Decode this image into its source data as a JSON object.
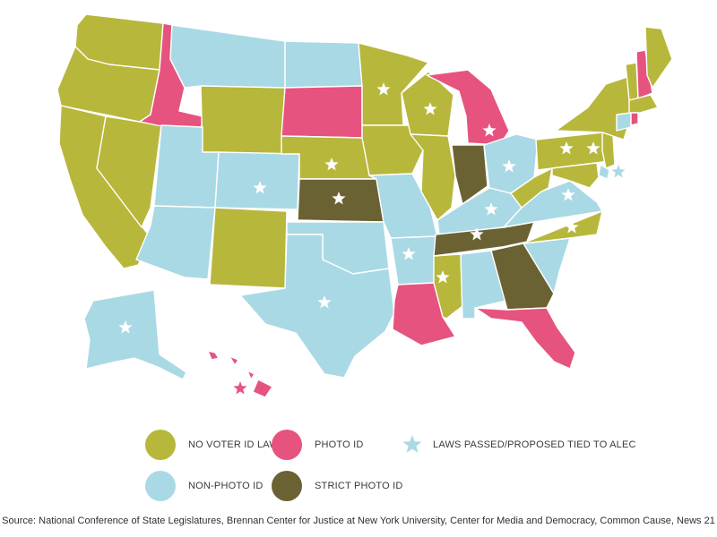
{
  "colors": {
    "no_voter_id": "#b7b73c",
    "photo_id": "#e6537f",
    "non_photo_id": "#a9d9e5",
    "strict_photo_id": "#6b6233",
    "alec_star_on_map": "#ffffff",
    "alec_star_legend": "#a9d9e5"
  },
  "legend": {
    "no_voter_id": "NO VOTER ID LAW",
    "photo_id": "PHOTO ID",
    "alec": "LAWS PASSED/PROPOSED TIED TO ALEC",
    "non_photo_id": "NON-PHOTO ID",
    "strict_photo_id": "STRICT PHOTO ID"
  },
  "states": [
    {
      "id": "WA",
      "category": "no_voter_id",
      "alec": false
    },
    {
      "id": "OR",
      "category": "no_voter_id",
      "alec": false
    },
    {
      "id": "CA",
      "category": "no_voter_id",
      "alec": false
    },
    {
      "id": "NV",
      "category": "no_voter_id",
      "alec": false
    },
    {
      "id": "ID",
      "category": "photo_id",
      "alec": false
    },
    {
      "id": "MT",
      "category": "non_photo_id",
      "alec": false
    },
    {
      "id": "WY",
      "category": "no_voter_id",
      "alec": false
    },
    {
      "id": "UT",
      "category": "non_photo_id",
      "alec": false
    },
    {
      "id": "AZ",
      "category": "non_photo_id",
      "alec": false
    },
    {
      "id": "CO",
      "category": "non_photo_id",
      "alec": true
    },
    {
      "id": "NM",
      "category": "no_voter_id",
      "alec": false
    },
    {
      "id": "ND",
      "category": "non_photo_id",
      "alec": false
    },
    {
      "id": "SD",
      "category": "photo_id",
      "alec": false
    },
    {
      "id": "NE",
      "category": "no_voter_id",
      "alec": true
    },
    {
      "id": "KS",
      "category": "strict_photo_id",
      "alec": true
    },
    {
      "id": "OK",
      "category": "non_photo_id",
      "alec": false
    },
    {
      "id": "TX",
      "category": "non_photo_id",
      "alec": true
    },
    {
      "id": "MN",
      "category": "no_voter_id",
      "alec": true
    },
    {
      "id": "IA",
      "category": "no_voter_id",
      "alec": false
    },
    {
      "id": "MO",
      "category": "non_photo_id",
      "alec": false
    },
    {
      "id": "AR",
      "category": "non_photo_id",
      "alec": true
    },
    {
      "id": "LA",
      "category": "photo_id",
      "alec": false
    },
    {
      "id": "WI",
      "category": "no_voter_id",
      "alec": true
    },
    {
      "id": "IL",
      "category": "no_voter_id",
      "alec": false
    },
    {
      "id": "MI",
      "category": "photo_id",
      "alec": true
    },
    {
      "id": "IN",
      "category": "strict_photo_id",
      "alec": false
    },
    {
      "id": "OH",
      "category": "non_photo_id",
      "alec": true
    },
    {
      "id": "KY",
      "category": "non_photo_id",
      "alec": true
    },
    {
      "id": "TN",
      "category": "strict_photo_id",
      "alec": true
    },
    {
      "id": "MS",
      "category": "no_voter_id",
      "alec": true
    },
    {
      "id": "AL",
      "category": "non_photo_id",
      "alec": false
    },
    {
      "id": "GA",
      "category": "strict_photo_id",
      "alec": false
    },
    {
      "id": "FL",
      "category": "photo_id",
      "alec": false
    },
    {
      "id": "SC",
      "category": "non_photo_id",
      "alec": false
    },
    {
      "id": "NC",
      "category": "no_voter_id",
      "alec": true
    },
    {
      "id": "VA",
      "category": "non_photo_id",
      "alec": true
    },
    {
      "id": "WV",
      "category": "no_voter_id",
      "alec": false
    },
    {
      "id": "PA",
      "category": "no_voter_id",
      "alec": true
    },
    {
      "id": "NY",
      "category": "no_voter_id",
      "alec": false
    },
    {
      "id": "VT",
      "category": "no_voter_id",
      "alec": false
    },
    {
      "id": "NH",
      "category": "photo_id",
      "alec": false
    },
    {
      "id": "ME",
      "category": "no_voter_id",
      "alec": false
    },
    {
      "id": "MA",
      "category": "no_voter_id",
      "alec": false
    },
    {
      "id": "CT",
      "category": "non_photo_id",
      "alec": false
    },
    {
      "id": "RI",
      "category": "photo_id",
      "alec": false
    },
    {
      "id": "NJ",
      "category": "no_voter_id",
      "alec": true
    },
    {
      "id": "DE",
      "category": "non_photo_id",
      "alec": true
    },
    {
      "id": "MD",
      "category": "no_voter_id",
      "alec": false
    },
    {
      "id": "AK",
      "category": "non_photo_id",
      "alec": true
    },
    {
      "id": "HI",
      "category": "photo_id",
      "alec": true
    }
  ],
  "source": "Source: National Conference of State Legislatures, Brennan Center for Justice at New York University, Center for Media and Democracy, Common Cause, News 21"
}
